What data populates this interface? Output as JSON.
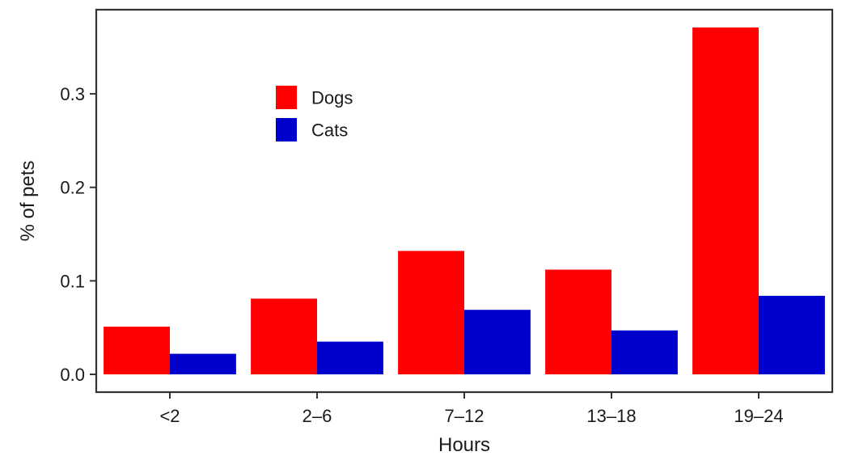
{
  "chart_data": {
    "type": "bar",
    "title": "",
    "xlabel": "Hours",
    "ylabel": "% of pets",
    "categories": [
      "<2",
      "2–6",
      "7–12",
      "13–18",
      "19–24"
    ],
    "series": [
      {
        "name": "Dogs",
        "color": "#ff0000",
        "values": [
          0.051,
          0.081,
          0.132,
          0.112,
          0.371
        ]
      },
      {
        "name": "Cats",
        "color": "#0000cc",
        "values": [
          0.022,
          0.035,
          0.069,
          0.047,
          0.084
        ]
      }
    ],
    "ylim": [
      -0.019,
      0.39
    ],
    "yticks": [
      0.0,
      0.1,
      0.2,
      0.3
    ],
    "ytick_labels": [
      "0.0",
      "0.1",
      "0.2",
      "0.3"
    ],
    "grid": false,
    "legend_position": "top-left"
  }
}
